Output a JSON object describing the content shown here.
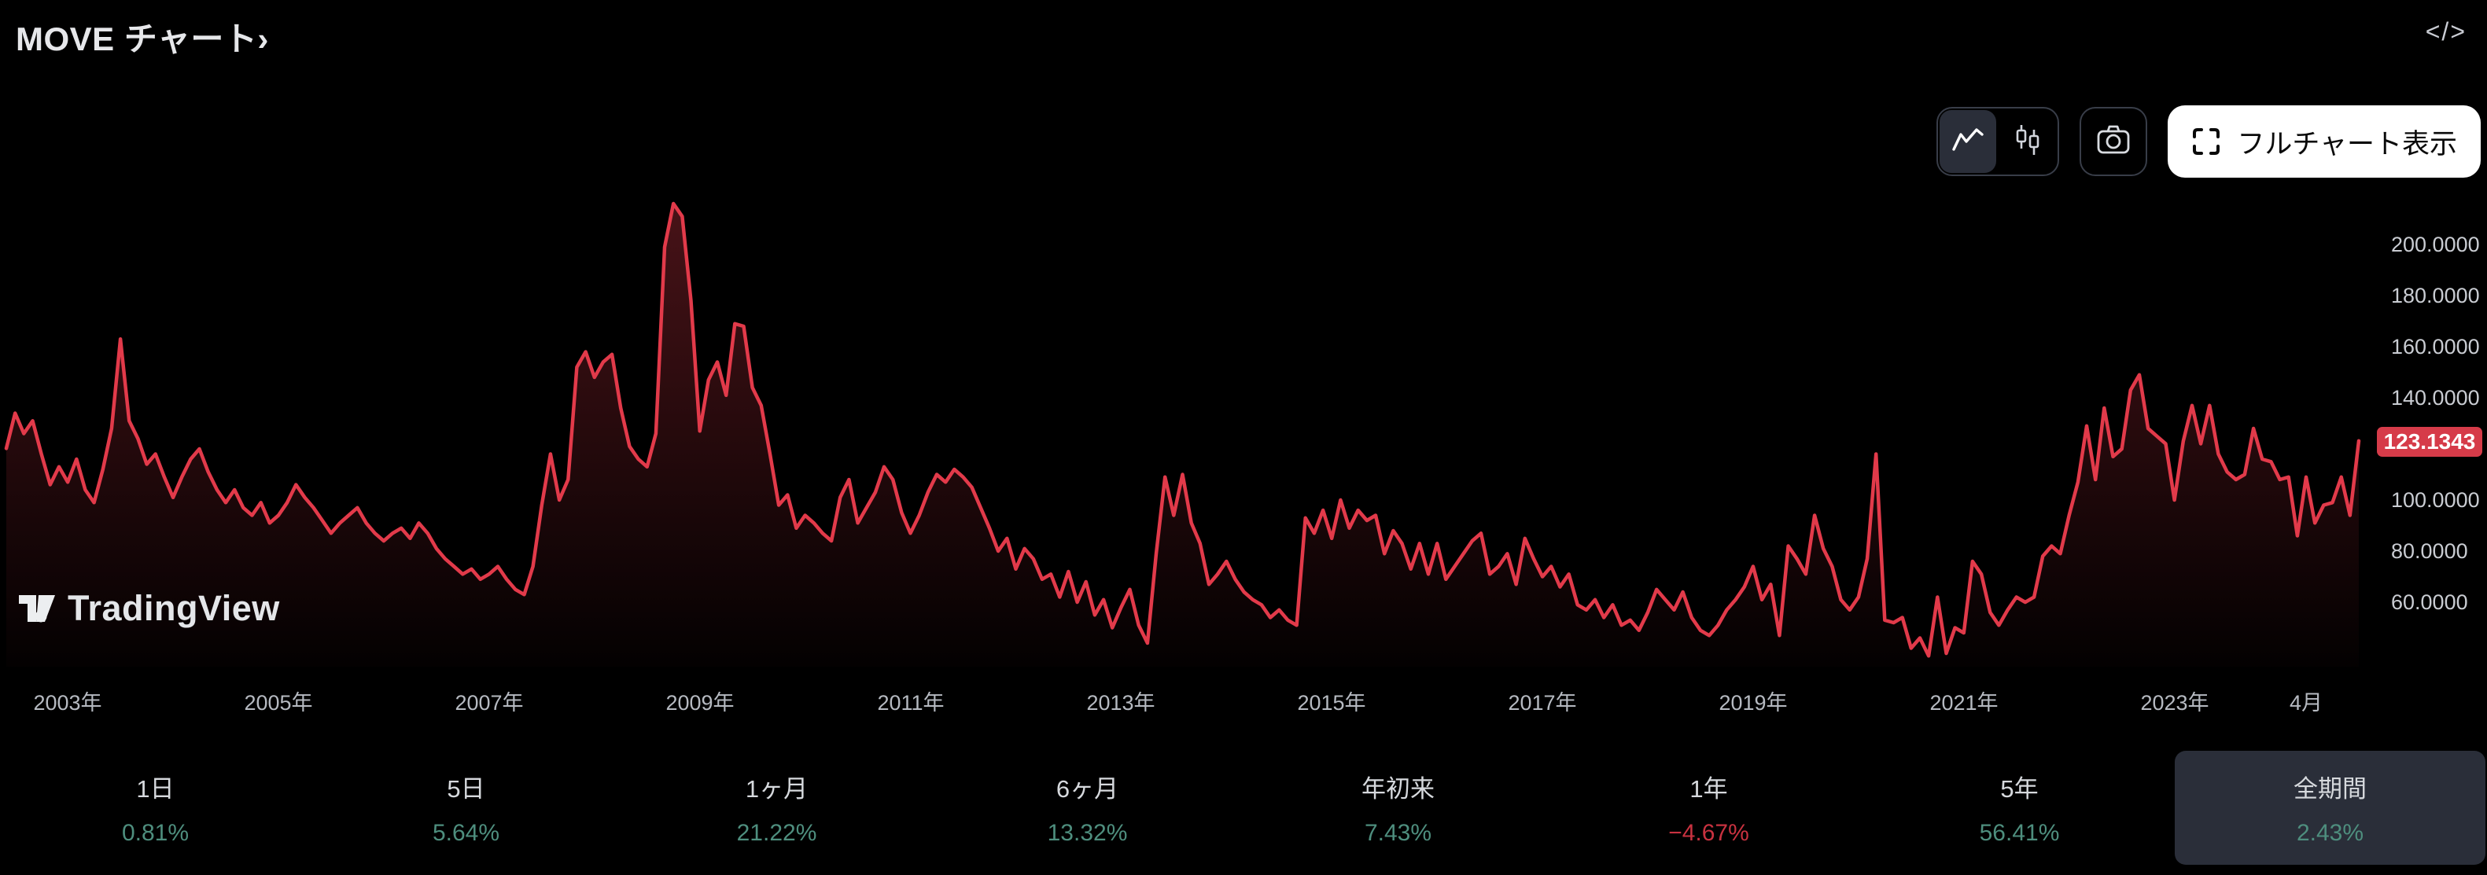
{
  "header": {
    "title": "MOVE チャート›",
    "embed_icon": "</>"
  },
  "toolbar": {
    "chart_style_options": [
      "area",
      "candles"
    ],
    "selected_chart_style": "area",
    "fullscreen_label": "フルチャート表示"
  },
  "watermark": "TradingView",
  "price_label": "123.1343",
  "colors": {
    "line_red": "#e23a4a",
    "badge_red": "#d63b49",
    "value_green": "#4e8e7e",
    "value_red": "#c93240",
    "selected_bg": "#2a2e39"
  },
  "y_axis_labels": [
    "200.0000",
    "180.0000",
    "160.0000",
    "140.0000",
    "120.0000",
    "100.0000",
    "80.0000",
    "60.0000"
  ],
  "chart_data": {
    "type": "area",
    "title": "MOVE",
    "frequency": "monthly",
    "start": "2002-06",
    "end": "2024-10",
    "last_price": 123.1343,
    "ylim": [
      36,
      226
    ],
    "y_ticks": [
      200,
      180,
      160,
      140,
      120,
      100,
      80,
      60
    ],
    "x_ticks": [
      {
        "label": "2003年",
        "index": 7
      },
      {
        "label": "2005年",
        "index": 31
      },
      {
        "label": "2007年",
        "index": 55
      },
      {
        "label": "2009年",
        "index": 79
      },
      {
        "label": "2011年",
        "index": 103
      },
      {
        "label": "2013年",
        "index": 127
      },
      {
        "label": "2015年",
        "index": 151
      },
      {
        "label": "2017年",
        "index": 175
      },
      {
        "label": "2019年",
        "index": 199
      },
      {
        "label": "2021年",
        "index": 223
      },
      {
        "label": "2023年",
        "index": 247
      },
      {
        "label": "4月",
        "index": 262
      }
    ],
    "values": [
      120.2,
      134,
      126,
      131,
      118,
      106,
      113,
      107,
      116,
      104,
      99,
      112,
      128,
      163,
      131,
      124,
      114,
      118,
      109,
      101,
      109,
      116,
      120,
      111,
      104,
      99,
      104,
      97,
      94,
      99,
      91,
      94,
      99,
      106,
      101,
      97,
      92,
      87,
      91,
      94,
      97,
      91,
      87,
      84,
      87,
      89,
      85,
      91,
      87,
      81,
      77,
      74,
      71,
      73,
      69,
      71,
      74,
      69,
      65,
      63,
      74,
      98,
      118,
      100,
      108,
      152,
      158,
      148,
      154,
      157,
      136,
      121,
      116,
      113,
      126,
      199,
      216,
      211,
      178,
      127,
      147,
      154,
      141,
      169,
      168,
      144,
      137,
      118,
      98,
      102,
      89,
      94,
      91,
      87,
      84,
      101,
      108,
      91,
      97,
      103,
      113,
      108,
      95,
      87,
      94,
      103,
      110,
      107,
      112,
      109,
      105,
      97,
      89,
      80,
      85,
      73,
      81,
      77,
      69,
      71,
      62,
      72,
      60,
      68,
      55,
      61,
      50,
      58,
      65,
      51,
      44,
      79,
      109,
      94,
      110,
      91,
      83,
      67,
      71,
      76,
      69,
      64,
      61,
      59,
      54,
      57,
      53,
      51,
      93,
      87,
      96,
      85,
      100,
      89,
      96,
      92,
      94,
      79,
      88,
      83,
      73,
      83,
      71,
      83,
      69,
      74,
      79,
      84,
      87,
      71,
      74,
      79,
      67,
      85,
      77,
      70,
      74,
      66,
      71,
      59,
      57,
      61,
      54,
      59,
      51,
      53,
      49,
      56,
      65,
      61,
      57,
      64,
      54,
      49,
      47,
      51,
      57,
      61,
      66,
      74,
      61,
      67,
      47,
      82,
      77,
      71,
      94,
      81,
      74,
      61,
      57,
      62,
      77,
      118,
      53,
      52,
      54,
      42,
      46,
      39,
      62,
      40,
      50,
      48,
      76,
      71,
      56,
      51,
      57,
      62,
      60,
      62,
      78,
      82,
      79,
      94,
      107,
      129,
      108,
      136,
      117,
      120,
      143,
      149,
      128,
      125,
      122,
      100,
      123,
      137,
      122,
      137,
      118,
      111,
      108,
      110,
      128,
      116,
      115,
      108,
      109,
      86,
      109,
      91,
      98,
      99,
      109,
      94,
      123.13
    ]
  },
  "stats": [
    {
      "label": "1日",
      "value": "0.81%",
      "direction": "up"
    },
    {
      "label": "5日",
      "value": "5.64%",
      "direction": "up"
    },
    {
      "label": "1ヶ月",
      "value": "21.22%",
      "direction": "up"
    },
    {
      "label": "6ヶ月",
      "value": "13.32%",
      "direction": "up"
    },
    {
      "label": "年初来",
      "value": "7.43%",
      "direction": "up"
    },
    {
      "label": "1年",
      "value": "−4.67%",
      "direction": "down"
    },
    {
      "label": "5年",
      "value": "56.41%",
      "direction": "up"
    },
    {
      "label": "全期間",
      "value": "2.43%",
      "direction": "up",
      "selected": true
    }
  ]
}
